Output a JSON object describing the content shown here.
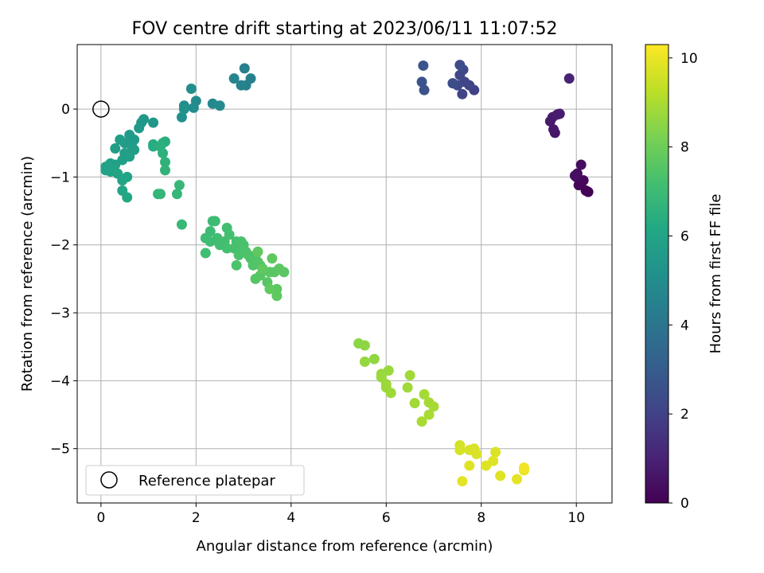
{
  "chart_data": {
    "type": "scatter",
    "title": "FOV centre drift starting at 2023/06/11 11:07:52",
    "xlabel": "Angular distance from reference (arcmin)",
    "ylabel": "Rotation from reference (arcmin)",
    "xlim": [
      -0.5,
      10.75
    ],
    "ylim": [
      -5.8,
      0.95
    ],
    "xticks": [
      0,
      2,
      4,
      6,
      8,
      10
    ],
    "xtick_labels": [
      "0",
      "2",
      "4",
      "6",
      "8",
      "10"
    ],
    "yticks": [
      0,
      -1,
      -2,
      -3,
      -4,
      -5
    ],
    "ytick_labels": [
      "0",
      "−1",
      "−2",
      "−3",
      "−4",
      "−5"
    ],
    "grid": true,
    "legend": {
      "position": "lower-left",
      "entries": [
        "Reference platepar"
      ]
    },
    "reference_point": {
      "x": 0,
      "y": 0
    },
    "colorbar": {
      "label": "Hours from first FF file",
      "colormap": "viridis",
      "range": [
        0,
        10.3
      ],
      "ticks": [
        0,
        2,
        4,
        6,
        8,
        10
      ],
      "tick_labels": [
        "0",
        "2",
        "4",
        "6",
        "8",
        "10"
      ]
    },
    "points": [
      [
        10.25,
        -1.22,
        0.0
      ],
      [
        10.2,
        -1.2,
        0.05
      ],
      [
        10.1,
        -1.1,
        0.1
      ],
      [
        10.05,
        -1.12,
        0.15
      ],
      [
        10.15,
        -1.05,
        0.2
      ],
      [
        10.0,
        -1.0,
        0.25
      ],
      [
        10.02,
        -0.95,
        0.3
      ],
      [
        10.1,
        -0.82,
        0.35
      ],
      [
        9.97,
        -0.98,
        0.4
      ],
      [
        9.55,
        -0.35,
        0.6
      ],
      [
        9.52,
        -0.3,
        0.65
      ],
      [
        9.45,
        -0.18,
        0.7
      ],
      [
        9.5,
        -0.12,
        0.75
      ],
      [
        9.6,
        -0.08,
        0.8
      ],
      [
        9.65,
        -0.07,
        0.85
      ],
      [
        9.85,
        0.45,
        1.0
      ],
      [
        7.85,
        0.28,
        2.0
      ],
      [
        7.75,
        0.35,
        2.05
      ],
      [
        7.6,
        0.22,
        2.1
      ],
      [
        7.65,
        0.4,
        2.15
      ],
      [
        7.55,
        0.5,
        2.2
      ],
      [
        7.5,
        0.35,
        2.25
      ],
      [
        7.62,
        0.58,
        2.3
      ],
      [
        7.55,
        0.65,
        2.35
      ],
      [
        7.4,
        0.38,
        2.4
      ],
      [
        6.8,
        0.28,
        2.6
      ],
      [
        6.75,
        0.4,
        2.65
      ],
      [
        6.78,
        0.64,
        2.7
      ],
      [
        3.02,
        0.6,
        4.4
      ],
      [
        3.15,
        0.45,
        4.45
      ],
      [
        3.05,
        0.35,
        4.5
      ],
      [
        2.95,
        0.35,
        4.55
      ],
      [
        2.8,
        0.45,
        4.6
      ],
      [
        2.35,
        0.08,
        4.8
      ],
      [
        2.5,
        0.05,
        4.85
      ],
      [
        2.0,
        0.12,
        4.9
      ],
      [
        1.95,
        0.02,
        4.95
      ],
      [
        1.75,
        0.05,
        5.0
      ],
      [
        1.9,
        0.3,
        5.05
      ],
      [
        1.7,
        -0.12,
        5.1
      ],
      [
        1.75,
        0.0,
        5.15
      ],
      [
        1.1,
        -0.2,
        5.4
      ],
      [
        0.9,
        -0.15,
        5.45
      ],
      [
        0.85,
        -0.2,
        5.5
      ],
      [
        0.8,
        -0.28,
        5.55
      ],
      [
        0.6,
        -0.38,
        5.6
      ],
      [
        0.7,
        -0.45,
        5.6
      ],
      [
        0.5,
        -0.5,
        5.65
      ],
      [
        0.65,
        -0.55,
        5.65
      ],
      [
        0.4,
        -0.45,
        5.7
      ],
      [
        0.3,
        -0.58,
        5.7
      ],
      [
        0.5,
        -0.65,
        5.75
      ],
      [
        0.7,
        -0.6,
        5.75
      ],
      [
        0.6,
        -0.7,
        5.8
      ],
      [
        0.45,
        -0.75,
        5.8
      ],
      [
        0.3,
        -0.82,
        5.85
      ],
      [
        0.2,
        -0.8,
        5.85
      ],
      [
        0.25,
        -0.88,
        5.9
      ],
      [
        0.1,
        -0.85,
        5.9
      ],
      [
        0.1,
        -0.9,
        5.95
      ],
      [
        0.2,
        -0.92,
        5.95
      ],
      [
        0.35,
        -0.95,
        6.0
      ],
      [
        0.45,
        -1.05,
        6.0
      ],
      [
        0.55,
        -1.0,
        6.05
      ],
      [
        0.45,
        -1.2,
        6.1
      ],
      [
        0.55,
        -1.3,
        6.15
      ],
      [
        1.1,
        -0.52,
        6.3
      ],
      [
        1.1,
        -0.55,
        6.35
      ],
      [
        1.3,
        -0.5,
        6.4
      ],
      [
        1.35,
        -0.48,
        6.45
      ],
      [
        1.25,
        -0.55,
        6.5
      ],
      [
        1.3,
        -0.65,
        6.55
      ],
      [
        1.35,
        -0.78,
        6.6
      ],
      [
        1.35,
        -0.9,
        6.65
      ],
      [
        1.2,
        -1.25,
        6.7
      ],
      [
        1.25,
        -1.25,
        6.75
      ],
      [
        1.6,
        -1.25,
        6.8
      ],
      [
        1.65,
        -1.12,
        6.85
      ],
      [
        1.7,
        -1.7,
        6.9
      ],
      [
        2.3,
        -1.8,
        7.0
      ],
      [
        2.4,
        -1.65,
        7.02
      ],
      [
        2.35,
        -1.65,
        7.04
      ],
      [
        2.2,
        -1.9,
        7.06
      ],
      [
        2.3,
        -1.95,
        7.08
      ],
      [
        2.2,
        -2.12,
        7.1
      ],
      [
        2.45,
        -1.9,
        7.12
      ],
      [
        2.5,
        -2.0,
        7.14
      ],
      [
        2.65,
        -1.75,
        7.16
      ],
      [
        2.6,
        -1.95,
        7.18
      ],
      [
        2.7,
        -1.85,
        7.2
      ],
      [
        2.65,
        -2.05,
        7.22
      ],
      [
        2.8,
        -2.05,
        7.24
      ],
      [
        2.85,
        -1.95,
        7.26
      ],
      [
        2.9,
        -2.1,
        7.28
      ],
      [
        2.95,
        -1.95,
        7.3
      ],
      [
        3.0,
        -2.0,
        7.32
      ],
      [
        2.9,
        -2.15,
        7.34
      ],
      [
        2.85,
        -2.3,
        7.36
      ],
      [
        3.05,
        -2.1,
        7.38
      ],
      [
        3.1,
        -2.15,
        7.4
      ],
      [
        3.15,
        -2.2,
        7.42
      ],
      [
        3.25,
        -2.15,
        7.44
      ],
      [
        3.2,
        -2.3,
        7.46
      ],
      [
        3.3,
        -2.25,
        7.48
      ],
      [
        3.35,
        -2.3,
        7.5
      ],
      [
        3.4,
        -2.35,
        7.52
      ],
      [
        3.25,
        -2.5,
        7.54
      ],
      [
        3.35,
        -2.45,
        7.56
      ],
      [
        3.5,
        -2.55,
        7.58
      ],
      [
        3.55,
        -2.4,
        7.6
      ],
      [
        3.65,
        -2.4,
        7.62
      ],
      [
        3.75,
        -2.35,
        7.64
      ],
      [
        3.85,
        -2.4,
        7.66
      ],
      [
        3.7,
        -2.65,
        7.68
      ],
      [
        3.7,
        -2.75,
        7.7
      ],
      [
        3.6,
        -2.2,
        7.72
      ],
      [
        3.3,
        -2.1,
        7.74
      ],
      [
        3.4,
        -2.35,
        7.76
      ],
      [
        3.55,
        -2.65,
        7.78
      ],
      [
        5.42,
        -3.45,
        8.5
      ],
      [
        5.55,
        -3.48,
        8.55
      ],
      [
        5.75,
        -3.68,
        8.6
      ],
      [
        5.55,
        -3.72,
        8.65
      ],
      [
        5.9,
        -3.9,
        8.7
      ],
      [
        6.05,
        -3.85,
        8.72
      ],
      [
        5.9,
        -3.95,
        8.74
      ],
      [
        6.0,
        -4.05,
        8.76
      ],
      [
        6.0,
        -4.1,
        8.78
      ],
      [
        6.1,
        -4.18,
        8.8
      ],
      [
        6.45,
        -4.1,
        8.82
      ],
      [
        6.5,
        -3.92,
        8.84
      ],
      [
        6.6,
        -4.33,
        8.86
      ],
      [
        6.8,
        -4.2,
        8.88
      ],
      [
        6.9,
        -4.32,
        8.9
      ],
      [
        7.0,
        -4.38,
        8.92
      ],
      [
        6.9,
        -4.5,
        8.94
      ],
      [
        6.75,
        -4.6,
        8.96
      ],
      [
        7.55,
        -4.95,
        9.6
      ],
      [
        7.55,
        -5.02,
        9.65
      ],
      [
        7.75,
        -5.02,
        9.7
      ],
      [
        7.85,
        -5.0,
        9.72
      ],
      [
        7.9,
        -5.08,
        9.74
      ],
      [
        8.3,
        -5.05,
        9.76
      ],
      [
        8.25,
        -5.18,
        9.78
      ],
      [
        8.1,
        -5.25,
        9.8
      ],
      [
        7.75,
        -5.25,
        9.82
      ],
      [
        8.4,
        -5.4,
        9.84
      ],
      [
        7.6,
        -5.48,
        9.86
      ],
      [
        8.75,
        -5.45,
        9.9
      ],
      [
        8.9,
        -5.32,
        10.0
      ],
      [
        8.9,
        -5.28,
        10.1
      ]
    ]
  }
}
